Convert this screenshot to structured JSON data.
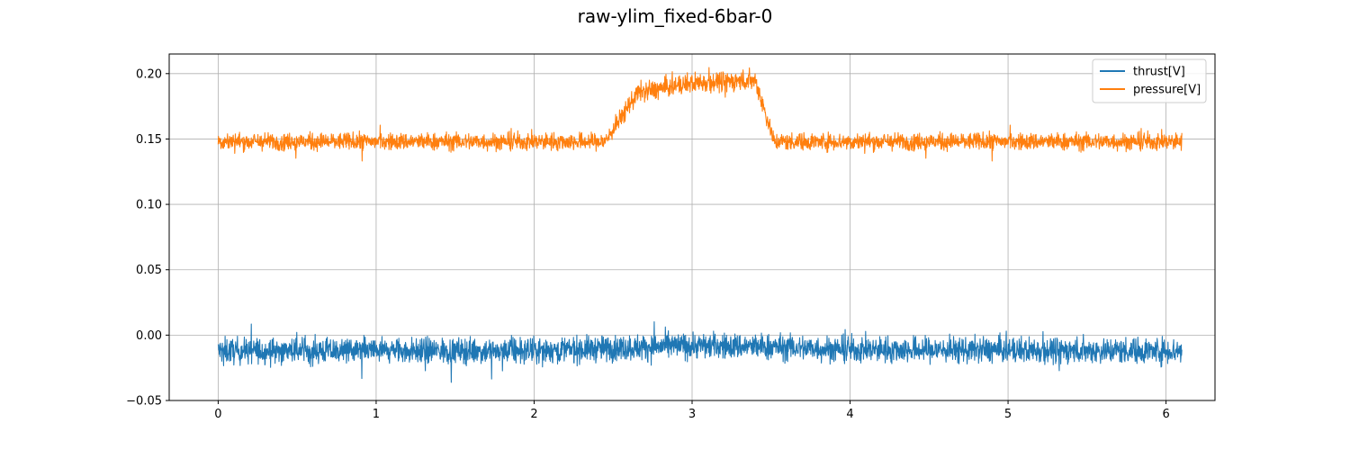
{
  "chart_data": {
    "type": "line",
    "title": "raw-ylim_fixed-6bar-0",
    "xlabel": "",
    "ylabel": "",
    "xlim": [
      -0.31,
      6.31
    ],
    "ylim": [
      -0.05,
      0.215
    ],
    "x_ticks": [
      0,
      1,
      2,
      3,
      4,
      5,
      6
    ],
    "x_tick_labels": [
      "0",
      "1",
      "2",
      "3",
      "4",
      "5",
      "6"
    ],
    "y_ticks": [
      -0.05,
      0.0,
      0.05,
      0.1,
      0.15,
      0.2
    ],
    "y_tick_labels": [
      "−0.05",
      "0.00",
      "0.05",
      "0.10",
      "0.15",
      "0.20"
    ],
    "grid": true,
    "legend_position": "top-right",
    "x_range": [
      0,
      6.1
    ],
    "series": [
      {
        "name": "thrust[V]",
        "color": "#1f77b4",
        "shape": [
          {
            "x": 0.0,
            "mean": -0.012,
            "noise": 0.009
          },
          {
            "x": 2.0,
            "mean": -0.012,
            "noise": 0.009
          },
          {
            "x": 2.5,
            "mean": -0.01,
            "noise": 0.009
          },
          {
            "x": 3.0,
            "mean": -0.008,
            "noise": 0.009
          },
          {
            "x": 3.5,
            "mean": -0.009,
            "noise": 0.009
          },
          {
            "x": 4.0,
            "mean": -0.011,
            "noise": 0.009
          },
          {
            "x": 6.1,
            "mean": -0.012,
            "noise": 0.009
          }
        ]
      },
      {
        "name": "pressure[V]",
        "color": "#ff7f0e",
        "shape": [
          {
            "x": 0.0,
            "mean": 0.148,
            "noise": 0.006
          },
          {
            "x": 2.45,
            "mean": 0.148,
            "noise": 0.006
          },
          {
            "x": 2.65,
            "mean": 0.185,
            "noise": 0.007
          },
          {
            "x": 3.0,
            "mean": 0.193,
            "noise": 0.007
          },
          {
            "x": 3.4,
            "mean": 0.195,
            "noise": 0.007
          },
          {
            "x": 3.52,
            "mean": 0.148,
            "noise": 0.006
          },
          {
            "x": 6.1,
            "mean": 0.148,
            "noise": 0.006
          }
        ]
      }
    ]
  }
}
